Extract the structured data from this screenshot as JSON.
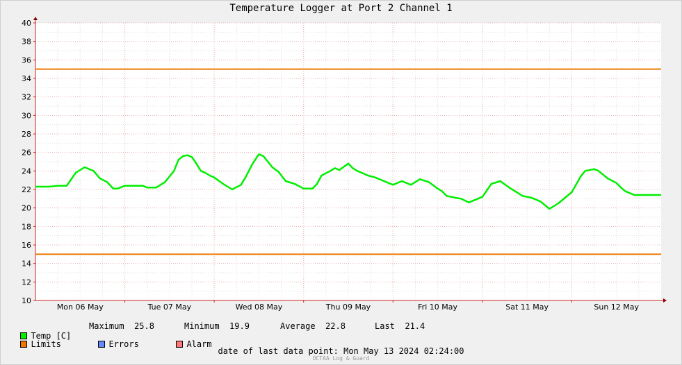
{
  "chart_data": {
    "type": "line",
    "title": "Temperature Logger at Port 2 Channel 1",
    "ylim": [
      10,
      40
    ],
    "yticks": [
      10,
      12,
      14,
      16,
      18,
      20,
      22,
      24,
      26,
      28,
      30,
      32,
      34,
      36,
      38,
      40
    ],
    "xlim": [
      0,
      7
    ],
    "xunit": "days from Mon 06 May 2024 00:00",
    "xtick_labels": [
      {
        "x": 0.5,
        "label": "Mon 06 May"
      },
      {
        "x": 1.5,
        "label": "Tue 07 May"
      },
      {
        "x": 2.5,
        "label": "Wed 08 May"
      },
      {
        "x": 3.5,
        "label": "Thu 09 May"
      },
      {
        "x": 4.5,
        "label": "Fri 10 May"
      },
      {
        "x": 5.5,
        "label": "Sat 11 May"
      },
      {
        "x": 6.5,
        "label": "Sun 12 May"
      }
    ],
    "grid": true,
    "series": [
      {
        "name": "Temp [C]",
        "color": "#00ee00",
        "x": [
          0.0,
          0.15,
          0.25,
          0.35,
          0.45,
          0.55,
          0.65,
          0.72,
          0.8,
          0.87,
          0.92,
          1.0,
          1.1,
          1.2,
          1.25,
          1.35,
          1.45,
          1.55,
          1.6,
          1.65,
          1.7,
          1.75,
          1.8,
          1.85,
          1.9,
          1.95,
          2.0,
          2.1,
          2.2,
          2.3,
          2.35,
          2.43,
          2.5,
          2.55,
          2.6,
          2.65,
          2.72,
          2.8,
          2.9,
          3.0,
          3.1,
          3.15,
          3.2,
          3.3,
          3.35,
          3.4,
          3.5,
          3.55,
          3.6,
          3.65,
          3.72,
          3.8,
          3.9,
          4.0,
          4.1,
          4.2,
          4.3,
          4.4,
          4.5,
          4.55,
          4.58,
          4.6,
          4.7,
          4.76,
          4.85,
          5.0,
          5.1,
          5.2,
          5.3,
          5.4,
          5.45,
          5.55,
          5.65,
          5.75,
          5.85,
          6.0,
          6.1,
          6.15,
          6.25,
          6.3,
          6.4,
          6.5,
          6.55,
          6.6,
          6.7,
          6.8,
          6.9,
          7.0
        ],
        "values": [
          22.3,
          22.3,
          22.4,
          22.4,
          23.8,
          24.4,
          24.0,
          23.2,
          22.8,
          22.1,
          22.1,
          22.4,
          22.4,
          22.4,
          22.2,
          22.2,
          22.8,
          24.0,
          25.2,
          25.6,
          25.7,
          25.5,
          24.8,
          24.0,
          23.8,
          23.5,
          23.3,
          22.6,
          22.0,
          22.5,
          23.3,
          24.8,
          25.8,
          25.6,
          25.0,
          24.4,
          23.9,
          22.9,
          22.6,
          22.1,
          22.1,
          22.6,
          23.5,
          24.0,
          24.3,
          24.1,
          24.8,
          24.3,
          24.0,
          23.8,
          23.5,
          23.3,
          22.9,
          22.5,
          22.9,
          22.5,
          23.1,
          22.8,
          22.1,
          21.8,
          21.5,
          21.3,
          21.1,
          21.0,
          20.6,
          21.2,
          22.6,
          22.9,
          22.2,
          21.6,
          21.3,
          21.1,
          20.7,
          19.9,
          20.5,
          21.7,
          23.4,
          24.0,
          24.2,
          24.0,
          23.2,
          22.7,
          22.2,
          21.8,
          21.4,
          21.4,
          21.4,
          21.4
        ]
      },
      {
        "name": "Limits",
        "color": "#ee7700",
        "values": [
          35,
          15
        ]
      }
    ]
  },
  "legend": {
    "temp": {
      "label": "Temp [C]",
      "color": "#00ee00"
    },
    "stats": [
      {
        "label": "Maximum",
        "value": "25.8"
      },
      {
        "label": "Minimum",
        "value": "19.9"
      },
      {
        "label": "Average",
        "value": "22.8"
      },
      {
        "label": "Last",
        "value": "21.4"
      }
    ],
    "limits": {
      "label": "Limits",
      "color": "#ee7700"
    },
    "errors": {
      "label": "Errors",
      "color": "#6688ff"
    },
    "alarm": {
      "label": "Alarm",
      "color": "#ff7777"
    }
  },
  "footer": {
    "last_point_label": "date of last data point:",
    "last_point_value": "Mon May 13 2024 02:24:00",
    "brand": "OCTAA Log & Guard"
  }
}
